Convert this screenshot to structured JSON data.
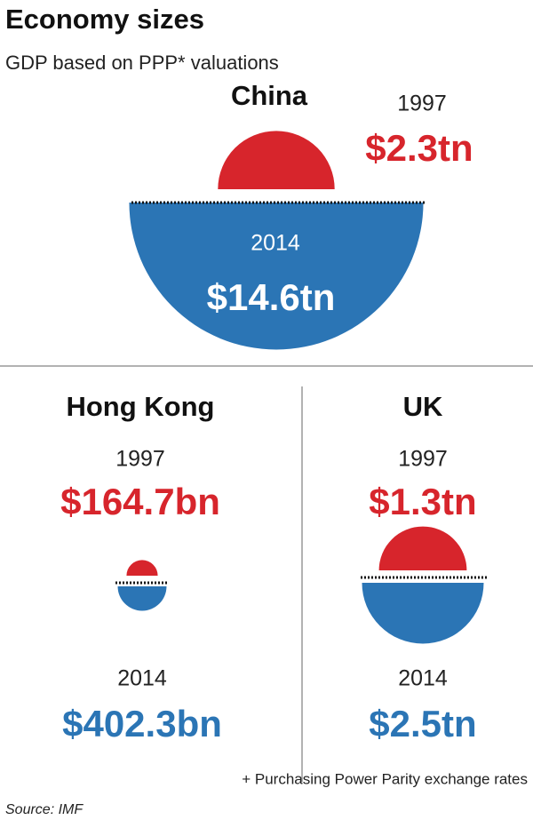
{
  "header": {
    "title": "Economy sizes",
    "subtitle": "GDP based on PPP* valuations"
  },
  "chart_data": [
    {
      "type": "semicircle",
      "title": "China",
      "categories": [
        "1997",
        "2014"
      ],
      "values": [
        2300,
        14600
      ],
      "value_labels": [
        "$2.3tn",
        "$14.6tn"
      ],
      "colors": [
        "#d7252c",
        "#2b75b5"
      ]
    },
    {
      "type": "semicircle",
      "title": "Hong Kong",
      "categories": [
        "1997",
        "2014"
      ],
      "values": [
        164.7,
        402.3
      ],
      "value_labels": [
        "$164.7bn",
        "$402.3bn"
      ],
      "colors": [
        "#d7252c",
        "#2b75b5"
      ]
    },
    {
      "type": "semicircle",
      "title": "UK",
      "categories": [
        "1997",
        "2014"
      ],
      "values": [
        1300,
        2500
      ],
      "value_labels": [
        "$1.3tn",
        "$2.5tn"
      ],
      "colors": [
        "#d7252c",
        "#2b75b5"
      ]
    }
  ],
  "footnote": "+ Purchasing Power Parity exchange rates",
  "source": "Source: IMF"
}
